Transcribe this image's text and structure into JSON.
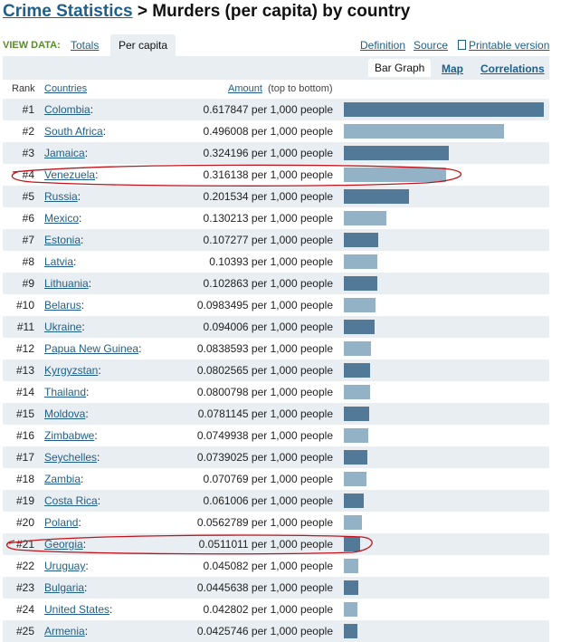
{
  "title": {
    "crumb": "Crime Statistics",
    "separator": ">",
    "rest": "Murders (per capita) by country"
  },
  "view": {
    "label": "VIEW DATA:",
    "tab_totals": "Totals",
    "tab_percapita": "Per capita",
    "definition": "Definition",
    "source": "Source",
    "printable": "Printable version"
  },
  "graph_tabs": {
    "bar_graph": "Bar Graph",
    "map": "Map",
    "correlations": "Correlations"
  },
  "columns": {
    "rank": "Rank",
    "countries": "Countries",
    "amount": "Amount",
    "note": "(top to bottom)"
  },
  "rows": [
    {
      "rank": "#1",
      "country": "Colombia",
      "amount": "0.617847 per 1,000 people",
      "value": 0.617847
    },
    {
      "rank": "#2",
      "country": "South Africa",
      "amount": "0.496008 per 1,000 people",
      "value": 0.496008
    },
    {
      "rank": "#3",
      "country": "Jamaica",
      "amount": "0.324196 per 1,000 people",
      "value": 0.324196
    },
    {
      "rank": "#4",
      "country": "Venezuela",
      "amount": "0.316138 per 1,000 people",
      "value": 0.316138
    },
    {
      "rank": "#5",
      "country": "Russia",
      "amount": "0.201534 per 1,000 people",
      "value": 0.201534
    },
    {
      "rank": "#6",
      "country": "Mexico",
      "amount": "0.130213 per 1,000 people",
      "value": 0.130213
    },
    {
      "rank": "#7",
      "country": "Estonia",
      "amount": "0.107277 per 1,000 people",
      "value": 0.107277
    },
    {
      "rank": "#8",
      "country": "Latvia",
      "amount": "0.10393 per 1,000 people",
      "value": 0.10393
    },
    {
      "rank": "#9",
      "country": "Lithuania",
      "amount": "0.102863 per 1,000 people",
      "value": 0.102863
    },
    {
      "rank": "#10",
      "country": "Belarus",
      "amount": "0.0983495 per 1,000 people",
      "value": 0.0983495
    },
    {
      "rank": "#11",
      "country": "Ukraine",
      "amount": "0.094006 per 1,000 people",
      "value": 0.094006
    },
    {
      "rank": "#12",
      "country": "Papua New Guinea",
      "amount": "0.0838593 per 1,000 people",
      "value": 0.0838593
    },
    {
      "rank": "#13",
      "country": "Kyrgyzstan",
      "amount": "0.0802565 per 1,000 people",
      "value": 0.0802565
    },
    {
      "rank": "#14",
      "country": "Thailand",
      "amount": "0.0800798 per 1,000 people",
      "value": 0.0800798
    },
    {
      "rank": "#15",
      "country": "Moldova",
      "amount": "0.0781145 per 1,000 people",
      "value": 0.0781145
    },
    {
      "rank": "#16",
      "country": "Zimbabwe",
      "amount": "0.0749938 per 1,000 people",
      "value": 0.0749938
    },
    {
      "rank": "#17",
      "country": "Seychelles",
      "amount": "0.0739025 per 1,000 people",
      "value": 0.0739025
    },
    {
      "rank": "#18",
      "country": "Zambia",
      "amount": "0.070769 per 1,000 people",
      "value": 0.070769
    },
    {
      "rank": "#19",
      "country": "Costa Rica",
      "amount": "0.061006 per 1,000 people",
      "value": 0.061006
    },
    {
      "rank": "#20",
      "country": "Poland",
      "amount": "0.0562789 per 1,000 people",
      "value": 0.0562789
    },
    {
      "rank": "#21",
      "country": "Georgia",
      "amount": "0.0511011 per 1,000 people",
      "value": 0.0511011
    },
    {
      "rank": "#22",
      "country": "Uruguay",
      "amount": "0.045082 per 1,000 people",
      "value": 0.045082
    },
    {
      "rank": "#23",
      "country": "Bulgaria",
      "amount": "0.0445638 per 1,000 people",
      "value": 0.0445638
    },
    {
      "rank": "#24",
      "country": "United States",
      "amount": "0.042802 per 1,000 people",
      "value": 0.042802
    },
    {
      "rank": "#25",
      "country": "Armenia",
      "amount": "0.0425746 per 1,000 people",
      "value": 0.0425746
    }
  ],
  "colors": {
    "link": "#1f5f87",
    "bar_dark": "#527a98",
    "bar_light": "#94b2c6",
    "row_shade": "#e9eef2",
    "view_label": "#5a8a2e",
    "annotation": "#c0141c"
  },
  "highlighted_ranks": [
    "#4",
    "#21"
  ]
}
